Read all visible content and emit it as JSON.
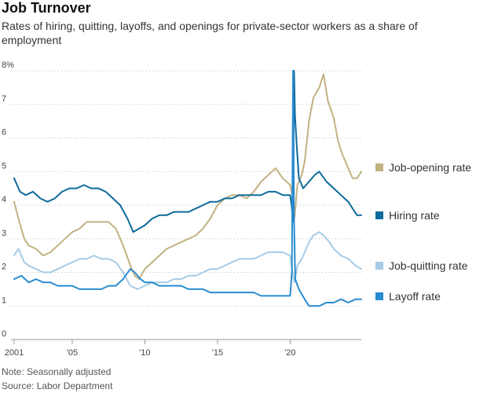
{
  "title": "Job Turnover",
  "subtitle": "Rates of hiring, quitting, layoffs, and openings for private-sector workers as a share of employment",
  "notes": {
    "note": "Note: Seasonally adjusted",
    "source": "Source: Labor Department"
  },
  "chart_data": {
    "type": "line",
    "title": "Job Turnover",
    "xlabel": "",
    "ylabel": "",
    "xlim": [
      2001,
      2024.9
    ],
    "ylim": [
      0,
      8
    ],
    "grid": "horizontal dashed",
    "legend_placement": "right",
    "x_ticks": [
      {
        "value": 2001,
        "label": "2001"
      },
      {
        "value": 2005,
        "label": "'05"
      },
      {
        "value": 2010,
        "label": "'10"
      },
      {
        "value": 2015,
        "label": "'15"
      },
      {
        "value": 2020,
        "label": "'20"
      }
    ],
    "y_ticks": [
      {
        "value": 0,
        "label": "0"
      },
      {
        "value": 1,
        "label": "1"
      },
      {
        "value": 2,
        "label": "2"
      },
      {
        "value": 3,
        "label": "3"
      },
      {
        "value": 4,
        "label": "4"
      },
      {
        "value": 5,
        "label": "5"
      },
      {
        "value": 6,
        "label": "6"
      },
      {
        "value": 7,
        "label": "7"
      },
      {
        "value": 8,
        "label": "8%"
      }
    ],
    "series": [
      {
        "name": "Job-opening rate",
        "color": "#c2b282",
        "points": [
          [
            2001,
            4.1
          ],
          [
            2001.3,
            3.6
          ],
          [
            2001.7,
            3.0
          ],
          [
            2002,
            2.8
          ],
          [
            2002.5,
            2.7
          ],
          [
            2003,
            2.5
          ],
          [
            2003.5,
            2.6
          ],
          [
            2004,
            2.8
          ],
          [
            2004.5,
            3.0
          ],
          [
            2005,
            3.2
          ],
          [
            2005.5,
            3.3
          ],
          [
            2006,
            3.5
          ],
          [
            2006.5,
            3.5
          ],
          [
            2007,
            3.5
          ],
          [
            2007.5,
            3.5
          ],
          [
            2008,
            3.3
          ],
          [
            2008.5,
            2.8
          ],
          [
            2009,
            2.2
          ],
          [
            2009.3,
            1.9
          ],
          [
            2009.6,
            1.8
          ],
          [
            2010,
            2.1
          ],
          [
            2010.5,
            2.3
          ],
          [
            2011,
            2.5
          ],
          [
            2011.5,
            2.7
          ],
          [
            2012,
            2.8
          ],
          [
            2012.5,
            2.9
          ],
          [
            2013,
            3.0
          ],
          [
            2013.5,
            3.1
          ],
          [
            2014,
            3.3
          ],
          [
            2014.5,
            3.6
          ],
          [
            2015,
            4.0
          ],
          [
            2015.5,
            4.2
          ],
          [
            2016,
            4.3
          ],
          [
            2016.5,
            4.3
          ],
          [
            2017,
            4.2
          ],
          [
            2017.5,
            4.4
          ],
          [
            2018,
            4.7
          ],
          [
            2018.5,
            4.9
          ],
          [
            2019,
            5.1
          ],
          [
            2019.5,
            4.8
          ],
          [
            2020,
            4.6
          ],
          [
            2020.2,
            4.2
          ],
          [
            2020.3,
            3.6
          ],
          [
            2020.5,
            4.6
          ],
          [
            2020.8,
            4.9
          ],
          [
            2021,
            5.3
          ],
          [
            2021.3,
            6.5
          ],
          [
            2021.6,
            7.2
          ],
          [
            2022,
            7.5
          ],
          [
            2022.3,
            7.9
          ],
          [
            2022.6,
            7.1
          ],
          [
            2023,
            6.6
          ],
          [
            2023.3,
            5.9
          ],
          [
            2023.6,
            5.5
          ],
          [
            2024,
            5.1
          ],
          [
            2024.3,
            4.8
          ],
          [
            2024.6,
            4.8
          ],
          [
            2024.9,
            5.0
          ]
        ]
      },
      {
        "name": "Hiring rate",
        "color": "#0e6a9a",
        "points": [
          [
            2001,
            4.8
          ],
          [
            2001.4,
            4.4
          ],
          [
            2001.8,
            4.3
          ],
          [
            2002.3,
            4.4
          ],
          [
            2002.8,
            4.2
          ],
          [
            2003.3,
            4.1
          ],
          [
            2003.8,
            4.2
          ],
          [
            2004.3,
            4.4
          ],
          [
            2004.8,
            4.5
          ],
          [
            2005.3,
            4.5
          ],
          [
            2005.8,
            4.6
          ],
          [
            2006.3,
            4.5
          ],
          [
            2006.8,
            4.5
          ],
          [
            2007.3,
            4.4
          ],
          [
            2007.8,
            4.2
          ],
          [
            2008.3,
            4.0
          ],
          [
            2008.8,
            3.6
          ],
          [
            2009.2,
            3.2
          ],
          [
            2009.6,
            3.3
          ],
          [
            2010,
            3.4
          ],
          [
            2010.5,
            3.6
          ],
          [
            2011,
            3.7
          ],
          [
            2011.5,
            3.7
          ],
          [
            2012,
            3.8
          ],
          [
            2012.5,
            3.8
          ],
          [
            2013,
            3.8
          ],
          [
            2013.5,
            3.9
          ],
          [
            2014,
            4.0
          ],
          [
            2014.5,
            4.1
          ],
          [
            2015,
            4.1
          ],
          [
            2015.5,
            4.2
          ],
          [
            2016,
            4.2
          ],
          [
            2016.5,
            4.3
          ],
          [
            2017,
            4.3
          ],
          [
            2017.5,
            4.3
          ],
          [
            2018,
            4.3
          ],
          [
            2018.5,
            4.4
          ],
          [
            2019,
            4.4
          ],
          [
            2019.5,
            4.3
          ],
          [
            2020,
            4.3
          ],
          [
            2020.1,
            4.0
          ],
          [
            2020.2,
            3.5
          ],
          [
            2020.27,
            8.0
          ],
          [
            2020.33,
            6.7
          ],
          [
            2020.45,
            5.8
          ],
          [
            2020.6,
            4.8
          ],
          [
            2020.9,
            4.5
          ],
          [
            2021.3,
            4.7
          ],
          [
            2021.7,
            4.9
          ],
          [
            2022,
            5.0
          ],
          [
            2022.5,
            4.7
          ],
          [
            2023,
            4.5
          ],
          [
            2023.5,
            4.3
          ],
          [
            2024,
            4.1
          ],
          [
            2024.3,
            3.9
          ],
          [
            2024.6,
            3.7
          ],
          [
            2024.9,
            3.7
          ]
        ]
      },
      {
        "name": "Job-quitting rate",
        "color": "#a6cbe5",
        "points": [
          [
            2001,
            2.5
          ],
          [
            2001.3,
            2.7
          ],
          [
            2001.7,
            2.3
          ],
          [
            2002,
            2.2
          ],
          [
            2002.5,
            2.1
          ],
          [
            2003,
            2.0
          ],
          [
            2003.5,
            2.0
          ],
          [
            2004,
            2.1
          ],
          [
            2004.5,
            2.2
          ],
          [
            2005,
            2.3
          ],
          [
            2005.5,
            2.4
          ],
          [
            2006,
            2.4
          ],
          [
            2006.5,
            2.5
          ],
          [
            2007,
            2.4
          ],
          [
            2007.5,
            2.4
          ],
          [
            2008,
            2.3
          ],
          [
            2008.5,
            2.0
          ],
          [
            2009,
            1.6
          ],
          [
            2009.5,
            1.5
          ],
          [
            2010,
            1.6
          ],
          [
            2010.5,
            1.7
          ],
          [
            2011,
            1.7
          ],
          [
            2011.5,
            1.7
          ],
          [
            2012,
            1.8
          ],
          [
            2012.5,
            1.8
          ],
          [
            2013,
            1.9
          ],
          [
            2013.5,
            1.9
          ],
          [
            2014,
            2.0
          ],
          [
            2014.5,
            2.1
          ],
          [
            2015,
            2.1
          ],
          [
            2015.5,
            2.2
          ],
          [
            2016,
            2.3
          ],
          [
            2016.5,
            2.4
          ],
          [
            2017,
            2.4
          ],
          [
            2017.5,
            2.4
          ],
          [
            2018,
            2.5
          ],
          [
            2018.5,
            2.6
          ],
          [
            2019,
            2.6
          ],
          [
            2019.5,
            2.6
          ],
          [
            2020,
            2.5
          ],
          [
            2020.2,
            1.9
          ],
          [
            2020.3,
            1.7
          ],
          [
            2020.5,
            2.2
          ],
          [
            2020.8,
            2.4
          ],
          [
            2021,
            2.6
          ],
          [
            2021.3,
            2.9
          ],
          [
            2021.6,
            3.1
          ],
          [
            2022,
            3.2
          ],
          [
            2022.3,
            3.1
          ],
          [
            2022.7,
            2.9
          ],
          [
            2023,
            2.7
          ],
          [
            2023.5,
            2.5
          ],
          [
            2024,
            2.4
          ],
          [
            2024.5,
            2.2
          ],
          [
            2024.9,
            2.1
          ]
        ]
      },
      {
        "name": "Layoff rate",
        "color": "#2a8cd0",
        "points": [
          [
            2001,
            1.8
          ],
          [
            2001.5,
            1.9
          ],
          [
            2002,
            1.7
          ],
          [
            2002.5,
            1.8
          ],
          [
            2003,
            1.7
          ],
          [
            2003.5,
            1.7
          ],
          [
            2004,
            1.6
          ],
          [
            2004.5,
            1.6
          ],
          [
            2005,
            1.6
          ],
          [
            2005.5,
            1.5
          ],
          [
            2006,
            1.5
          ],
          [
            2006.5,
            1.5
          ],
          [
            2007,
            1.5
          ],
          [
            2007.5,
            1.6
          ],
          [
            2008,
            1.6
          ],
          [
            2008.5,
            1.8
          ],
          [
            2009,
            2.1
          ],
          [
            2009.3,
            2.0
          ],
          [
            2009.7,
            1.8
          ],
          [
            2010,
            1.7
          ],
          [
            2010.5,
            1.7
          ],
          [
            2011,
            1.6
          ],
          [
            2011.5,
            1.6
          ],
          [
            2012,
            1.6
          ],
          [
            2012.5,
            1.6
          ],
          [
            2013,
            1.5
          ],
          [
            2013.5,
            1.5
          ],
          [
            2014,
            1.5
          ],
          [
            2014.5,
            1.4
          ],
          [
            2015,
            1.4
          ],
          [
            2015.5,
            1.4
          ],
          [
            2016,
            1.4
          ],
          [
            2016.5,
            1.4
          ],
          [
            2017,
            1.4
          ],
          [
            2017.5,
            1.4
          ],
          [
            2018,
            1.3
          ],
          [
            2018.5,
            1.3
          ],
          [
            2019,
            1.3
          ],
          [
            2019.5,
            1.3
          ],
          [
            2020,
            1.3
          ],
          [
            2020.12,
            2.0
          ],
          [
            2020.2,
            8.0
          ],
          [
            2020.27,
            3.5
          ],
          [
            2020.35,
            1.8
          ],
          [
            2020.6,
            1.5
          ],
          [
            2021,
            1.2
          ],
          [
            2021.3,
            1.0
          ],
          [
            2021.6,
            1.0
          ],
          [
            2022,
            1.0
          ],
          [
            2022.5,
            1.1
          ],
          [
            2023,
            1.1
          ],
          [
            2023.5,
            1.2
          ],
          [
            2024,
            1.1
          ],
          [
            2024.5,
            1.2
          ],
          [
            2024.9,
            1.2
          ]
        ]
      }
    ]
  }
}
